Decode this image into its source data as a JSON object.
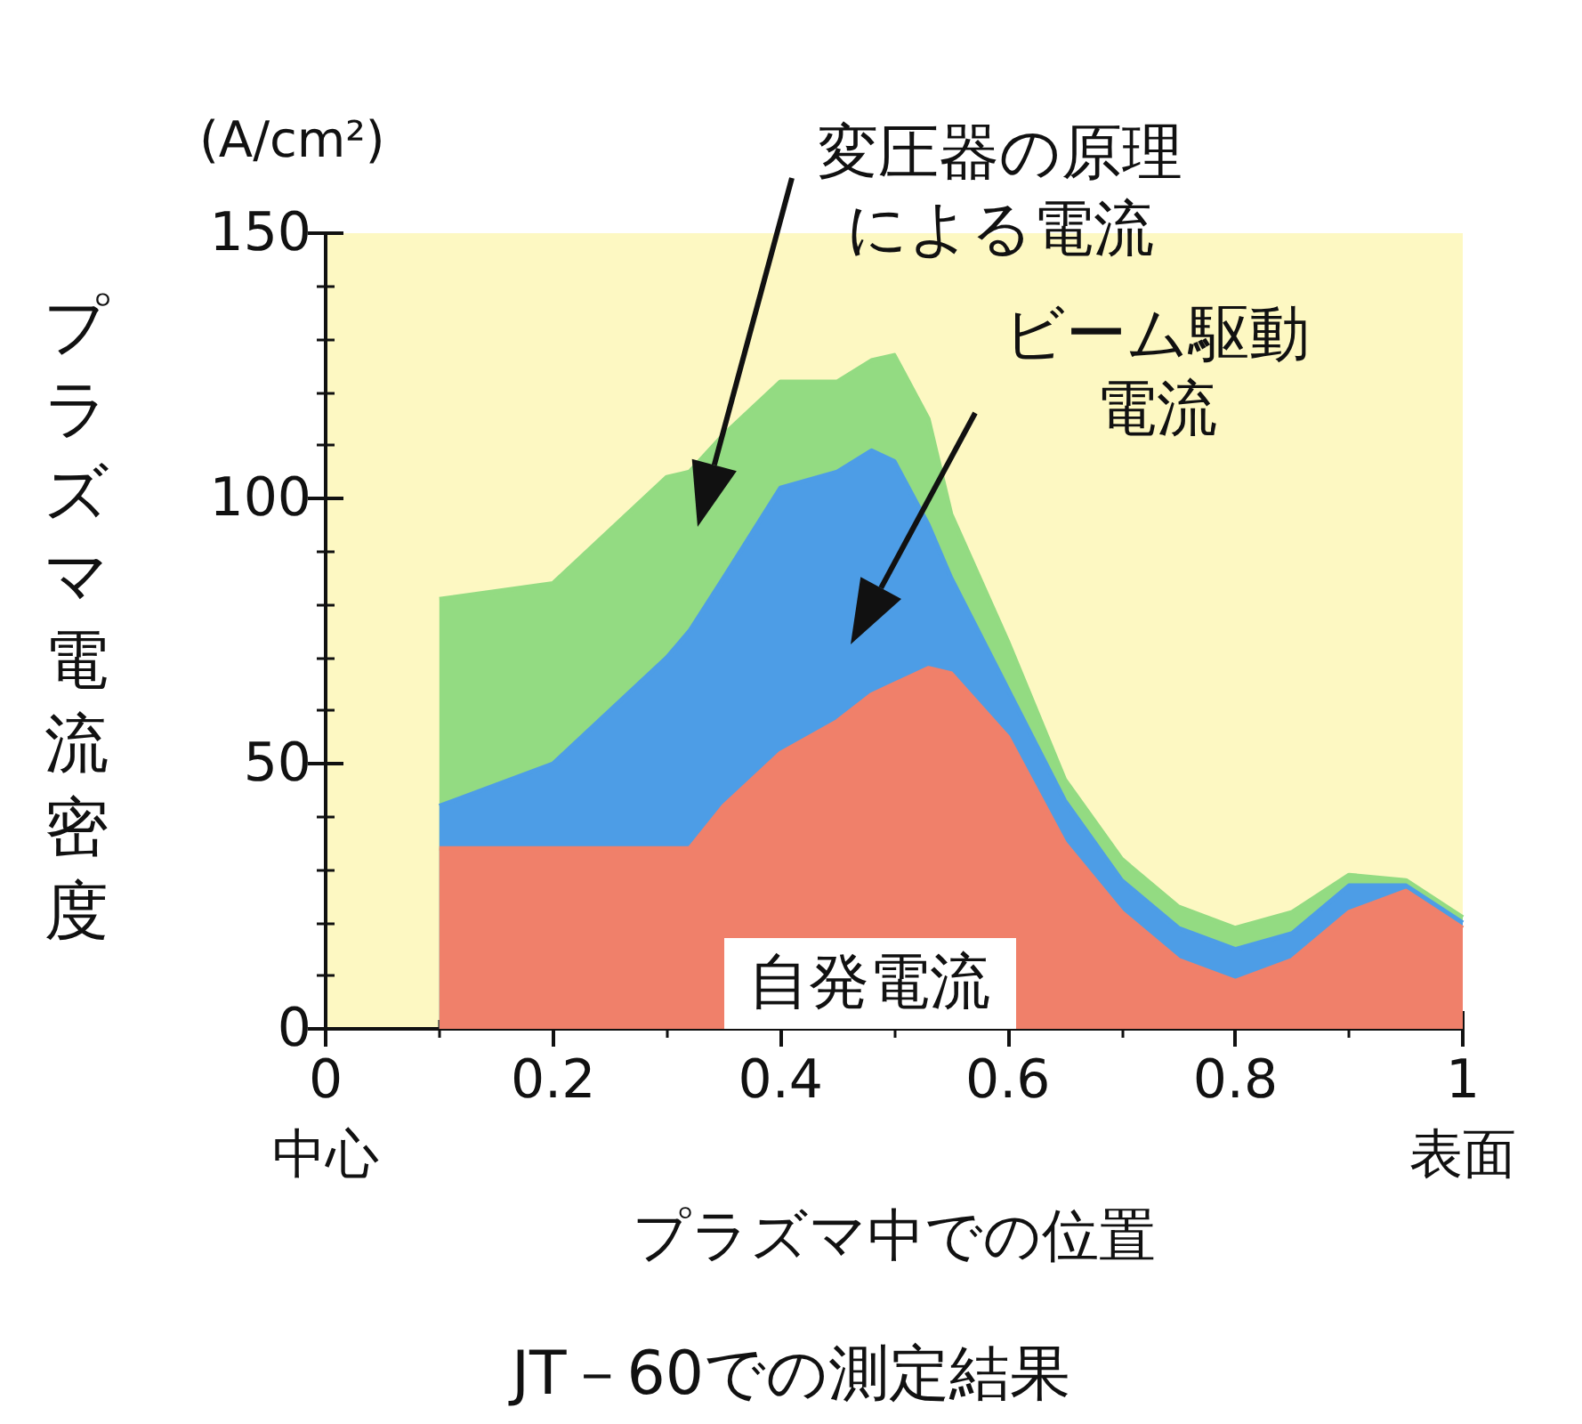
{
  "chart_data": {
    "type": "area",
    "stacked": true,
    "title": "JT－60での測定結果",
    "xlabel": "プラズマ中での位置",
    "ylabel": "プラズマ電流密度",
    "annotations": [
      "(A/cm²)"
    ],
    "x": [
      0.1,
      0.2,
      0.3,
      0.32,
      0.35,
      0.4,
      0.45,
      0.48,
      0.5,
      0.53,
      0.55,
      0.6,
      0.65,
      0.7,
      0.75,
      0.8,
      0.85,
      0.9,
      0.95,
      1.0
    ],
    "series": [
      {
        "name": "自発電流",
        "color": "#f0806a",
        "values": [
          34,
          34,
          34,
          34,
          42,
          52,
          58,
          63,
          65,
          68,
          67,
          55,
          35,
          22,
          13,
          9,
          13,
          22,
          26,
          19
        ]
      },
      {
        "name": "ビーム駆動電流",
        "color": "#4d9de6",
        "values": [
          8,
          16,
          36,
          41,
          43,
          50,
          47,
          46,
          42,
          27,
          18,
          9,
          8,
          6,
          6,
          6,
          5,
          5,
          1,
          1
        ]
      },
      {
        "name": "変圧器の原理による電流",
        "color": "#93db82",
        "values": [
          39,
          34,
          34,
          30,
          27,
          20,
          17,
          17,
          20,
          20,
          12,
          9,
          4,
          4,
          4,
          4,
          4,
          2,
          1,
          1
        ]
      }
    ],
    "xlim": [
      0,
      1
    ],
    "xticks": [
      {
        "value": 0,
        "label": "0\n中心"
      },
      0.2,
      0.4,
      0.6,
      0.8,
      {
        "value": 1,
        "label": "1\n表面"
      }
    ],
    "ylim": [
      0,
      150
    ],
    "yticks": [
      0,
      50,
      100,
      150
    ],
    "grid": false,
    "marker": "none",
    "line_style": "solid"
  }
}
